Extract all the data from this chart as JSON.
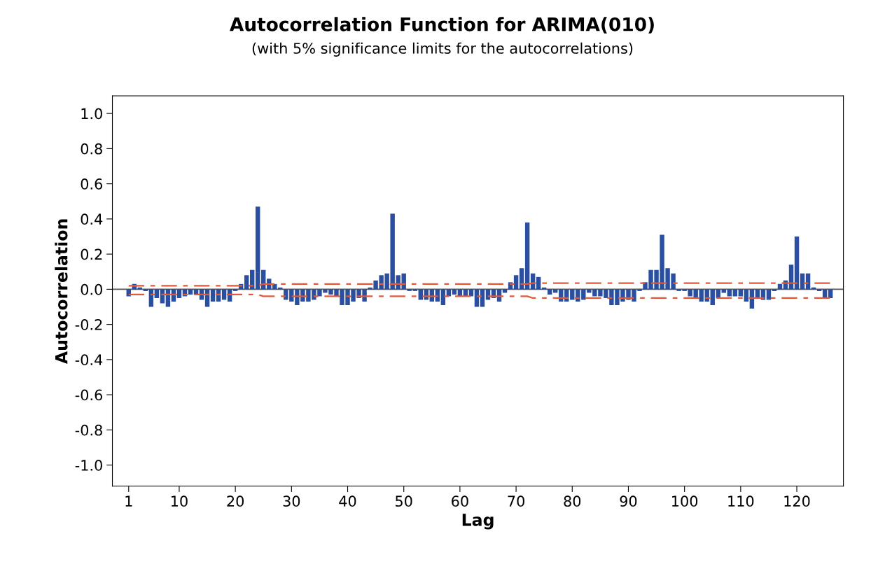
{
  "chart_data": {
    "type": "bar",
    "title": "Autocorrelation Function for ARIMA(010)",
    "subtitle": "(with 5% significance limits for the autocorrelations)",
    "xlabel": "Lag",
    "ylabel": "Autocorrelation",
    "x": [
      1,
      2,
      3,
      4,
      5,
      6,
      7,
      8,
      9,
      10,
      11,
      12,
      13,
      14,
      15,
      16,
      17,
      18,
      19,
      20,
      21,
      22,
      23,
      24,
      25,
      26,
      27,
      28,
      29,
      30,
      31,
      32,
      33,
      34,
      35,
      36,
      37,
      38,
      39,
      40,
      41,
      42,
      43,
      44,
      45,
      46,
      47,
      48,
      49,
      50,
      51,
      52,
      53,
      54,
      55,
      56,
      57,
      58,
      59,
      60,
      61,
      62,
      63,
      64,
      65,
      66,
      67,
      68,
      69,
      70,
      71,
      72,
      73,
      74,
      75,
      76,
      77,
      78,
      79,
      80,
      81,
      82,
      83,
      84,
      85,
      86,
      87,
      88,
      89,
      90,
      91,
      92,
      93,
      94,
      95,
      96,
      97,
      98,
      99,
      100,
      101,
      102,
      103,
      104,
      105,
      106,
      107,
      108,
      109,
      110,
      111,
      112,
      113,
      114,
      115,
      116,
      117,
      118,
      119,
      120,
      121,
      122,
      123,
      124,
      125,
      126
    ],
    "series": [
      {
        "color": "#2b4fa0",
        "values": [
          -0.04,
          0.03,
          0.01,
          -0.01,
          -0.1,
          -0.05,
          -0.08,
          -0.1,
          -0.07,
          -0.05,
          -0.04,
          -0.03,
          -0.03,
          -0.06,
          -0.1,
          -0.07,
          -0.07,
          -0.06,
          -0.07,
          -0.01,
          0.03,
          0.08,
          0.11,
          0.47,
          0.11,
          0.06,
          0.03,
          0.01,
          -0.06,
          -0.07,
          -0.09,
          -0.07,
          -0.07,
          -0.06,
          -0.04,
          -0.02,
          -0.03,
          -0.04,
          -0.09,
          -0.09,
          -0.07,
          -0.05,
          -0.07,
          0.01,
          0.05,
          0.08,
          0.09,
          0.43,
          0.08,
          0.09,
          -0.01,
          -0.01,
          -0.06,
          -0.06,
          -0.07,
          -0.07,
          -0.09,
          -0.04,
          -0.03,
          -0.04,
          -0.04,
          -0.04,
          -0.1,
          -0.1,
          -0.06,
          -0.05,
          -0.07,
          -0.02,
          0.04,
          0.08,
          0.12,
          0.38,
          0.09,
          0.07,
          0.01,
          -0.03,
          -0.02,
          -0.07,
          -0.07,
          -0.06,
          -0.07,
          -0.06,
          -0.02,
          -0.04,
          -0.04,
          -0.05,
          -0.09,
          -0.09,
          -0.07,
          -0.06,
          -0.07,
          -0.01,
          0.04,
          0.11,
          0.11,
          0.31,
          0.12,
          0.09,
          -0.01,
          -0.01,
          -0.04,
          -0.05,
          -0.07,
          -0.07,
          -0.09,
          -0.05,
          -0.02,
          -0.04,
          -0.04,
          -0.04,
          -0.07,
          -0.11,
          -0.05,
          -0.06,
          -0.06,
          -0.01,
          0.03,
          0.05,
          0.14,
          0.3,
          0.09,
          0.09,
          0.01,
          -0.01,
          -0.05,
          -0.05
        ]
      },
      {
        "type": "line",
        "color": "#e05a3a",
        "line_style": "dashed",
        "x": [
          1,
          24,
          25,
          72,
          73,
          126
        ],
        "values": [
          0.02,
          0.02,
          0.03,
          0.03,
          0.035,
          0.035
        ]
      },
      {
        "type": "line",
        "color": "#e05a3a",
        "line_style": "dashed",
        "x": [
          1,
          24,
          25,
          72,
          73,
          126
        ],
        "values": [
          -0.03,
          -0.03,
          -0.04,
          -0.04,
          -0.05,
          -0.05
        ]
      }
    ],
    "ref_lines": [
      {
        "axis": "y",
        "value": 0,
        "color": "#555555",
        "line_style": "solid"
      }
    ],
    "xlim": [
      -1.9,
      128.3
    ],
    "xticks": [
      1,
      10,
      20,
      30,
      40,
      50,
      60,
      70,
      80,
      90,
      100,
      110,
      120
    ],
    "ylim": [
      -1.12,
      1.1
    ],
    "yticks": [
      {
        "value": -1,
        "label": "-1.0"
      },
      {
        "value": -0.8,
        "label": "-0.8"
      },
      {
        "value": -0.6,
        "label": "-0.6"
      },
      {
        "value": -0.4,
        "label": "-0.4"
      },
      {
        "value": -0.2,
        "label": "-0.2"
      },
      {
        "value": 0,
        "label": "0.0"
      },
      {
        "value": 0.2,
        "label": "0.2"
      },
      {
        "value": 0.4,
        "label": "0.4"
      },
      {
        "value": 0.6,
        "label": "0.6"
      },
      {
        "value": 0.8,
        "label": "0.8"
      },
      {
        "value": 1,
        "label": "1.0"
      }
    ],
    "grid": false,
    "legend": false
  }
}
